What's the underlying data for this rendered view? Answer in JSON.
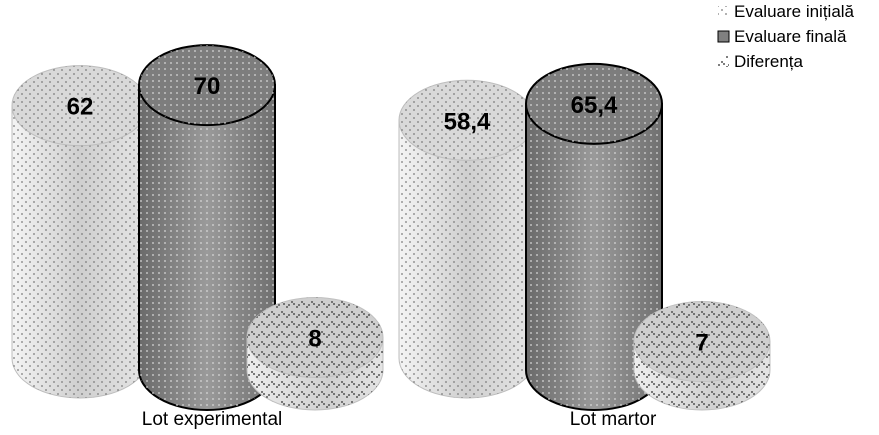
{
  "chart_data": {
    "type": "bar",
    "style": "3d-cylinder",
    "categories": [
      "Lot experimental",
      "Lot martor"
    ],
    "series": [
      {
        "name": "Evaluare inițială",
        "values": [
          62,
          58.4
        ],
        "value_labels": [
          "62",
          "58,4"
        ],
        "color": "#e8e8e8"
      },
      {
        "name": "Evaluare finală",
        "values": [
          70,
          65.4
        ],
        "value_labels": [
          "70",
          "65,4"
        ],
        "color": "#8c8c8c"
      },
      {
        "name": "Diferența",
        "values": [
          8,
          7
        ],
        "value_labels": [
          "8",
          "7"
        ],
        "color": "#dcdcdc"
      }
    ],
    "ylim": [
      0,
      70
    ],
    "grid": false,
    "legend_position": "top-right"
  }
}
